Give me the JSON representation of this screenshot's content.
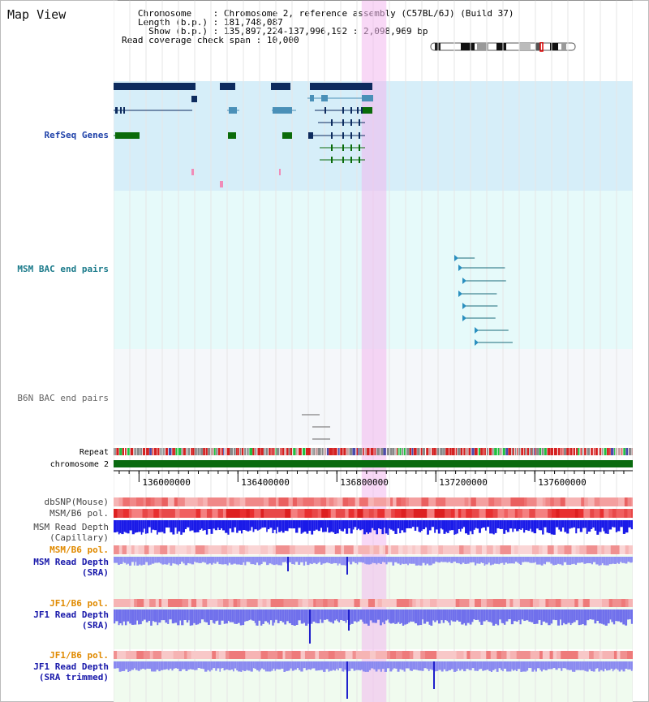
{
  "page": {
    "title": "Map View"
  },
  "info": {
    "chromosome_label": "Chromosome",
    "chromosome_value": "Chromosome 2, reference assembly (C57BL/6J) (Build 37)",
    "length_label": "Length (b.p.)",
    "length_value": "181,748,087",
    "show_label": "Show (b.p.)",
    "show_value": "135,897,224-137,996,192 : 2,098,969 bp",
    "span_label": "Read coverage check span",
    "span_value": "10,000"
  },
  "tracks": {
    "refseq": {
      "label": "RefSeq Genes",
      "color": "#2244aa"
    },
    "msm_bac": {
      "label": "MSM BAC end pairs",
      "color": "#1a7a8a"
    },
    "b6n_bac": {
      "label": "B6N BAC end pairs",
      "color": "#666666"
    },
    "repeat": {
      "label": "Repeat"
    },
    "chromosome": {
      "label": "chromosome 2"
    },
    "dbsnp": {
      "label": "dbSNP(Mouse)"
    },
    "msm_b6_pol_1": {
      "label": "MSM/B6 pol."
    },
    "msm_read_depth_cap": {
      "line1": "MSM Read Depth",
      "line2": "(Capillary)"
    },
    "msm_b6_pol_2": {
      "label": "MSM/B6 pol.",
      "color": "#e08a00"
    },
    "msm_read_depth_sra": {
      "line1": "MSM Read Depth",
      "line2": "(SRA)",
      "color": "#1818aa"
    },
    "jf1_b6_pol_1": {
      "label": "JF1/B6 pol.",
      "color": "#e08a00"
    },
    "jf1_read_depth_sra": {
      "line1": "JF1 Read Depth",
      "line2": "(SRA)",
      "color": "#1818aa"
    },
    "jf1_b6_pol_2": {
      "label": "JF1/B6 pol.",
      "color": "#e08a00"
    },
    "jf1_read_depth_trim": {
      "line1": "JF1 Read Depth",
      "line2": "(SRA trimmed)",
      "color": "#1818aa"
    }
  },
  "axis": {
    "ticks": [
      {
        "pos": 136000000,
        "label": "136000000"
      },
      {
        "pos": 136400000,
        "label": "136400000"
      },
      {
        "pos": 136800000,
        "label": "136800000"
      },
      {
        "pos": 137200000,
        "label": "137200000"
      },
      {
        "pos": 137600000,
        "label": "137600000"
      }
    ],
    "start": 135897224,
    "end": 137996192
  },
  "highlight": {
    "start": 136900000,
    "end": 137000000
  }
}
